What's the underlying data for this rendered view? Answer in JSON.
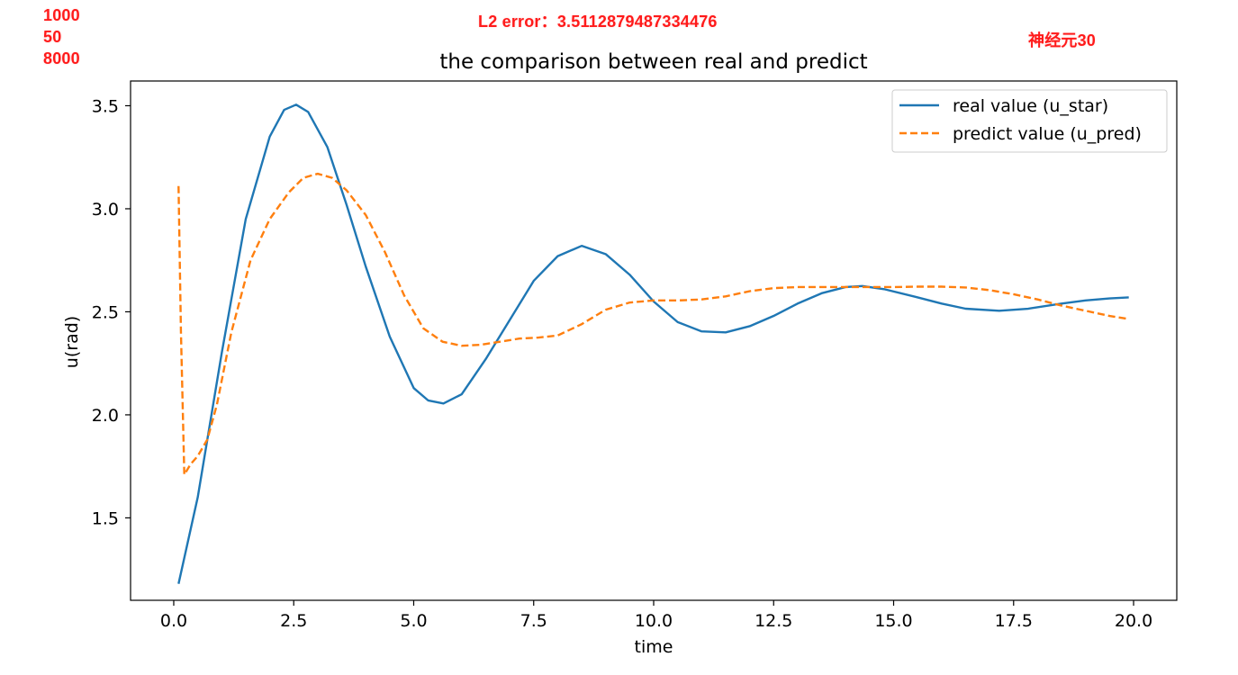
{
  "annotations": {
    "params": [
      "1000",
      "50",
      "8000"
    ],
    "l2_error": "L2 error：3.5112879487334476",
    "neurons": "神经元30",
    "color": "#ff1a1a"
  },
  "chart_data": {
    "type": "line",
    "title": "the comparison between real and predict",
    "xlabel": "time",
    "ylabel": "u(rad)",
    "xlim": [
      -0.9,
      20.9
    ],
    "ylim": [
      1.1,
      3.62
    ],
    "xticks": [
      0.0,
      2.5,
      5.0,
      7.5,
      10.0,
      12.5,
      15.0,
      17.5,
      20.0
    ],
    "xtick_labels": [
      "0.0",
      "2.5",
      "5.0",
      "7.5",
      "10.0",
      "12.5",
      "15.0",
      "17.5",
      "20.0"
    ],
    "yticks": [
      1.5,
      2.0,
      2.5,
      3.0,
      3.5
    ],
    "ytick_labels": [
      "1.5",
      "2.0",
      "2.5",
      "3.0",
      "3.5"
    ],
    "grid": false,
    "legend_position": "top-right",
    "series": [
      {
        "name": "real value (u_star)",
        "color": "#1f77b4",
        "dash": "solid",
        "x": [
          0.1,
          0.5,
          1.0,
          1.5,
          2.0,
          2.3,
          2.55,
          2.8,
          3.2,
          3.6,
          4.0,
          4.5,
          5.0,
          5.3,
          5.62,
          6.0,
          6.5,
          7.0,
          7.5,
          8.0,
          8.5,
          9.0,
          9.5,
          10.0,
          10.5,
          11.0,
          11.5,
          12.0,
          12.5,
          13.0,
          13.5,
          14.0,
          14.35,
          14.8,
          15.5,
          16.0,
          16.5,
          17.2,
          17.8,
          18.5,
          19.0,
          19.5,
          19.9
        ],
        "y": [
          1.18,
          1.6,
          2.3,
          2.95,
          3.35,
          3.48,
          3.505,
          3.47,
          3.3,
          3.02,
          2.72,
          2.38,
          2.13,
          2.07,
          2.055,
          2.1,
          2.27,
          2.46,
          2.65,
          2.77,
          2.82,
          2.78,
          2.68,
          2.55,
          2.45,
          2.405,
          2.4,
          2.43,
          2.48,
          2.54,
          2.59,
          2.62,
          2.625,
          2.61,
          2.57,
          2.54,
          2.515,
          2.505,
          2.515,
          2.54,
          2.555,
          2.565,
          2.57
        ]
      },
      {
        "name": "predict value (u_pred)",
        "color": "#ff7f0e",
        "dash": "dashed",
        "x": [
          0.1,
          0.15,
          0.22,
          0.35,
          0.5,
          0.7,
          0.9,
          1.2,
          1.6,
          2.0,
          2.4,
          2.7,
          3.0,
          3.3,
          3.6,
          4.0,
          4.4,
          4.8,
          5.2,
          5.6,
          6.0,
          6.4,
          6.8,
          7.2,
          7.6,
          8.0,
          8.5,
          9.0,
          9.5,
          10.0,
          10.5,
          11.0,
          11.5,
          12.0,
          12.5,
          13.0,
          13.5,
          14.0,
          14.5,
          15.0,
          15.5,
          16.0,
          16.5,
          17.0,
          17.5,
          18.0,
          18.5,
          19.0,
          19.5,
          19.9
        ],
        "y": [
          3.11,
          2.4,
          1.71,
          1.76,
          1.8,
          1.88,
          2.05,
          2.4,
          2.75,
          2.95,
          3.08,
          3.15,
          3.17,
          3.15,
          3.09,
          2.97,
          2.79,
          2.58,
          2.42,
          2.355,
          2.335,
          2.34,
          2.355,
          2.37,
          2.375,
          2.385,
          2.44,
          2.51,
          2.545,
          2.555,
          2.555,
          2.56,
          2.575,
          2.6,
          2.615,
          2.62,
          2.62,
          2.62,
          2.62,
          2.62,
          2.622,
          2.622,
          2.618,
          2.605,
          2.585,
          2.56,
          2.53,
          2.505,
          2.48,
          2.465
        ]
      }
    ]
  }
}
